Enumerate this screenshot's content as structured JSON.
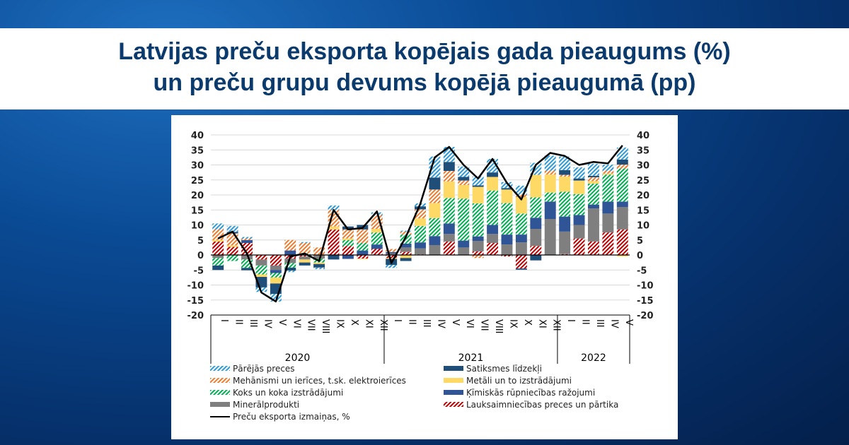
{
  "title": {
    "line1": "Latvijas preču eksporta kopējais gada pieaugums (%)",
    "line2": "un preču grupu devums kopējā pieaugumā (pp)"
  },
  "chart_data": {
    "type": "bar",
    "stacked": true,
    "title": "",
    "xlabel": "",
    "ylabel": "",
    "ylim": [
      -20,
      40
    ],
    "yticks": [
      40,
      35,
      30,
      25,
      20,
      15,
      10,
      5,
      0,
      -5,
      -10,
      -15,
      -20
    ],
    "grid": true,
    "legend_position": "bottom",
    "categories": [
      "I",
      "II",
      "III",
      "IV",
      "V",
      "VI",
      "VII",
      "VIII",
      "IX",
      "X",
      "XI",
      "XII",
      "I",
      "II",
      "III",
      "IV",
      "V",
      "VI",
      "VII",
      "VIII",
      "IX",
      "X",
      "XI",
      "XII",
      "I",
      "II",
      "III",
      "IV",
      "V"
    ],
    "years": [
      {
        "label": "2020",
        "count": 12
      },
      {
        "label": "2021",
        "count": 12
      },
      {
        "label": "2022",
        "count": 5
      }
    ],
    "series": [
      {
        "name": "Lauksaimniecības preces un pārtika",
        "color": "#c00000",
        "hatched": true,
        "values": [
          4.5,
          2.7,
          4,
          -1.5,
          -3.5,
          -1.2,
          -0.5,
          0,
          8.5,
          3,
          -1.2,
          2,
          -1,
          1,
          0.2,
          0,
          4.5,
          0,
          1.2,
          4,
          -0.5,
          -4.5,
          3,
          0,
          0.3,
          5.5,
          4.5,
          7.5,
          8.5
        ]
      },
      {
        "name": "Minerālprodukti",
        "color": "#7f7f7f",
        "hatched": false,
        "values": [
          -1,
          0,
          -1.5,
          -2,
          -1.5,
          -1.5,
          -1,
          -1.2,
          0,
          0,
          0,
          0,
          0.5,
          1.5,
          2,
          3.3,
          2.5,
          2.5,
          3.5,
          3,
          3.5,
          4.2,
          5.7,
          12,
          7.5,
          4.5,
          11,
          6.3,
          7.5
        ]
      },
      {
        "name": "Ķīmiskās rūpniecības ražojumi",
        "color": "#2f5597",
        "hatched": false,
        "values": [
          0,
          0,
          1,
          0,
          -1,
          1.5,
          0,
          0,
          0,
          -1.3,
          1.5,
          1.5,
          0.5,
          1.3,
          2,
          3,
          3.5,
          2.3,
          1.5,
          3,
          3.3,
          2.6,
          3.7,
          5.8,
          5,
          3.3,
          1.3,
          4,
          1.8
        ]
      },
      {
        "name": "Koks un koka izstrādājumi",
        "color": "#00b050",
        "hatched": true,
        "values": [
          -2.5,
          -2,
          -2.8,
          -3,
          -1.5,
          -1.5,
          0.5,
          -1.3,
          0,
          2,
          2.5,
          4,
          0,
          3,
          5.5,
          6,
          8.5,
          14,
          11,
          11.5,
          10.5,
          7,
          6.8,
          3,
          8.3,
          7,
          7,
          9,
          11
        ]
      },
      {
        "name": "Metāli un to izstrādājumi",
        "color": "#ffd966",
        "hatched": false,
        "values": [
          0.5,
          0.5,
          0,
          -0.8,
          -2,
          0,
          -1,
          -0.5,
          1,
          0.5,
          -0.2,
          1.2,
          -0.3,
          -1,
          2.5,
          5,
          5.5,
          4.5,
          5.5,
          4.5,
          4.5,
          5.5,
          7.5,
          6,
          5,
          4.5,
          0.8,
          0.3,
          -0.5
        ]
      },
      {
        "name": "Mehānismi un ierīces, t.sk. elektroierīces",
        "color": "#ed7d31",
        "hatched": true,
        "values": [
          3.5,
          4,
          0.5,
          0,
          0,
          3.5,
          3.5,
          2.5,
          5.5,
          3,
          4.5,
          4.5,
          1,
          1,
          3,
          4.5,
          3.5,
          1.5,
          -1,
          0,
          0,
          0.8,
          0,
          1.3,
          0.6,
          0,
          1.3,
          1,
          1.3
        ]
      },
      {
        "name": "Satiksmes līdzekļi",
        "color": "#1f4e79",
        "hatched": false,
        "values": [
          -1.5,
          0.5,
          -0.8,
          -3.5,
          -3.5,
          -1,
          -1,
          -1.2,
          -1.5,
          1,
          1.5,
          0,
          -2,
          -1,
          1,
          4,
          3,
          1.2,
          0.5,
          1.5,
          0.5,
          -0.4,
          -1.8,
          0,
          1.6,
          0.7,
          0.5,
          0,
          1.7
        ]
      },
      {
        "name": "Pārējās preces",
        "color": "#2e9bd6",
        "hatched": true,
        "values": [
          2,
          2,
          0.5,
          -1.5,
          -2.5,
          -0.5,
          0.3,
          -0.5,
          1.5,
          0,
          0,
          1,
          -1,
          0.3,
          1,
          7,
          5,
          3.5,
          3,
          4.5,
          2,
          3,
          4,
          5,
          4.5,
          3.7,
          4,
          2,
          4
        ]
      }
    ],
    "line": {
      "name": "Preču eksporta izmaiņas, %",
      "color": "#000000",
      "values": [
        5.5,
        7.8,
        0.5,
        -12.5,
        -15.5,
        -0.5,
        0.5,
        -2,
        15,
        8.5,
        9,
        14.5,
        -2.7,
        6,
        17,
        32.5,
        36,
        30,
        25.5,
        32,
        24,
        18.5,
        30,
        34,
        33,
        30,
        31,
        30.5,
        36.5
      ]
    },
    "legend_left": [
      "Pārējās preces",
      "Mehānismi un ierīces, t.sk. elektroierīces",
      "Koks un koka izstrādājumi",
      "Minerālprodukti",
      "Preču eksporta izmaiņas, %"
    ],
    "legend_right": [
      "Satiksmes līdzekļi",
      "Metāli un to izstrādājumi",
      "Ķīmiskās rūpniecības ražojumi",
      "Lauksaimniecības preces un pārtika"
    ]
  }
}
